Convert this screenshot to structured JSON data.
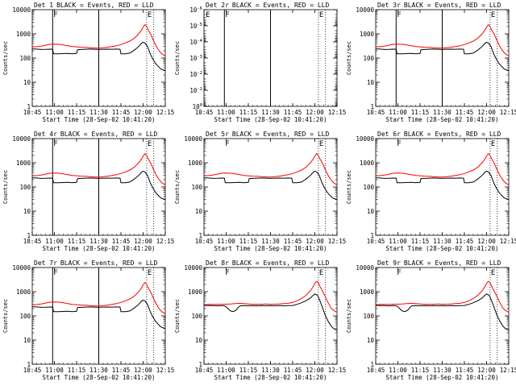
{
  "figure": {
    "xlabel": "Start Time (28-Sep-02 10:41:20)",
    "ylabel": "Counts/sec",
    "title_suffix": "BLACK = Events, RED = LLD"
  },
  "chart_data": [
    {
      "type": "line",
      "title": "Det 1",
      "title_suffix": "BLACK = Events, RED = LLD",
      "xlabel": "Start Time (28-Sep-02 10:41:20)",
      "ylabel": "Counts/sec",
      "yscale": "log",
      "ylim": [
        1,
        10000
      ],
      "xlim": [
        10.75,
        12.25
      ],
      "x_ticks": [
        10.75,
        11.0,
        11.25,
        11.5,
        11.75,
        12.0,
        12.25
      ],
      "x_tick_labels": [
        "10:45",
        "11:00",
        "11:15",
        "11:30",
        "11:45",
        "12:00",
        "12:15"
      ],
      "y_ticks": [
        1,
        10,
        100,
        1000,
        10000
      ],
      "y_tick_labels": [
        "1",
        "10",
        "100",
        "1000",
        "10000"
      ],
      "vlines_solid": [
        10.98,
        11.5
      ],
      "vlines_dotted": [
        12.04,
        12.12
      ],
      "markers": [
        {
          "x": 10.98,
          "label": "F"
        },
        {
          "x": 12.04,
          "label": "E"
        }
      ],
      "series": [
        {
          "name": "Events",
          "color": "#000000",
          "shape": "v1"
        },
        {
          "name": "LLD",
          "color": "#ff0000",
          "shape": "r1"
        }
      ]
    },
    {
      "type": "line",
      "title": "Det 2r",
      "title_suffix": "BLACK = Events, RED = LLD",
      "xlabel": "Start Time (28-Sep-02 10:41:20)",
      "ylabel": "Counts/sec",
      "yscale": "log",
      "ylim": [
        1,
        1e-06
      ],
      "xlim": [
        10.75,
        12.25
      ],
      "x_ticks": [
        10.75,
        11.0,
        11.25,
        11.5,
        11.75,
        12.0,
        12.25
      ],
      "x_tick_labels": [
        "10:45",
        "11:00",
        "11:15",
        "11:30",
        "11:45",
        "12:00",
        "12:15"
      ],
      "y_ticks": [
        1,
        0.1,
        0.01,
        0.001,
        0.0001,
        1e-05,
        1e-06
      ],
      "y_tick_labels": [
        "10^0",
        "10^-1",
        "10^-2",
        "10^-3",
        "10^-4",
        "10^-5",
        "10^-6"
      ],
      "vlines_solid": [
        10.98,
        11.5
      ],
      "vlines_dotted": [
        12.04,
        12.12
      ],
      "markers": [
        {
          "x": 10.76,
          "label": "E"
        },
        {
          "x": 10.98,
          "label": "F"
        },
        {
          "x": 12.04,
          "label": "E"
        }
      ],
      "series": []
    },
    {
      "type": "line",
      "title": "Det 3r",
      "title_suffix": "BLACK = Events, RED = LLD",
      "xlabel": "Start Time (28-Sep-02 10:41:20)",
      "ylabel": "Counts/sec",
      "yscale": "log",
      "ylim": [
        1,
        10000
      ],
      "xlim": [
        10.75,
        12.25
      ],
      "x_ticks": [
        10.75,
        11.0,
        11.25,
        11.5,
        11.75,
        12.0,
        12.25
      ],
      "x_tick_labels": [
        "10:45",
        "11:00",
        "11:15",
        "11:30",
        "11:45",
        "12:00",
        "12:15"
      ],
      "y_ticks": [
        1,
        10,
        100,
        1000,
        10000
      ],
      "y_tick_labels": [
        "1",
        "10",
        "100",
        "1000",
        "10000"
      ],
      "vlines_solid": [
        10.98,
        11.5
      ],
      "vlines_dotted": [
        12.04,
        12.12
      ],
      "markers": [
        {
          "x": 10.98,
          "label": "F"
        },
        {
          "x": 12.04,
          "label": "E"
        }
      ],
      "series": [
        {
          "name": "Events",
          "color": "#000000",
          "shape": "v1"
        },
        {
          "name": "LLD",
          "color": "#ff0000",
          "shape": "r1"
        }
      ]
    },
    {
      "type": "line",
      "title": "Det 4r",
      "title_suffix": "BLACK = Events, RED = LLD",
      "xlabel": "Start Time (28-Sep-02 10:41:20)",
      "ylabel": "Counts/sec",
      "yscale": "log",
      "ylim": [
        1,
        10000
      ],
      "xlim": [
        10.75,
        12.25
      ],
      "x_ticks": [
        10.75,
        11.0,
        11.25,
        11.5,
        11.75,
        12.0,
        12.25
      ],
      "x_tick_labels": [
        "10:45",
        "11:00",
        "11:15",
        "11:30",
        "11:45",
        "12:00",
        "12:15"
      ],
      "y_ticks": [
        1,
        10,
        100,
        1000,
        10000
      ],
      "y_tick_labels": [
        "1",
        "10",
        "100",
        "1000",
        "10000"
      ],
      "vlines_solid": [
        10.98,
        11.5
      ],
      "vlines_dotted": [
        12.04,
        12.12
      ],
      "markers": [
        {
          "x": 10.98,
          "label": "F"
        },
        {
          "x": 12.04,
          "label": "E"
        }
      ],
      "series": [
        {
          "name": "Events",
          "color": "#000000",
          "shape": "v1"
        },
        {
          "name": "LLD",
          "color": "#ff0000",
          "shape": "r1"
        }
      ]
    },
    {
      "type": "line",
      "title": "Det 5r",
      "title_suffix": "BLACK = Events, RED = LLD",
      "xlabel": "Start Time (28-Sep-02 10:41:20)",
      "ylabel": "Counts/sec",
      "yscale": "log",
      "ylim": [
        1,
        10000
      ],
      "xlim": [
        10.75,
        12.25
      ],
      "x_ticks": [
        10.75,
        11.0,
        11.25,
        11.5,
        11.75,
        12.0,
        12.25
      ],
      "x_tick_labels": [
        "10:45",
        "11:00",
        "11:15",
        "11:30",
        "11:45",
        "12:00",
        "12:15"
      ],
      "y_ticks": [
        1,
        10,
        100,
        1000,
        10000
      ],
      "y_tick_labels": [
        "1",
        "10",
        "100",
        "1000",
        "10000"
      ],
      "vlines_solid": [],
      "vlines_dotted": [
        12.04,
        12.12
      ],
      "markers": [
        {
          "x": 10.98,
          "label": "F"
        },
        {
          "x": 12.04,
          "label": "E"
        }
      ],
      "series": [
        {
          "name": "Events",
          "color": "#000000",
          "shape": "v1"
        },
        {
          "name": "LLD",
          "color": "#ff0000",
          "shape": "r1"
        }
      ]
    },
    {
      "type": "line",
      "title": "Det 6r",
      "title_suffix": "BLACK = Events, RED = LLD",
      "xlabel": "Start Time (28-Sep-02 10:41:20)",
      "ylabel": "Counts/sec",
      "yscale": "log",
      "ylim": [
        1,
        10000
      ],
      "xlim": [
        10.75,
        12.25
      ],
      "x_ticks": [
        10.75,
        11.0,
        11.25,
        11.5,
        11.75,
        12.0,
        12.25
      ],
      "x_tick_labels": [
        "10:45",
        "11:00",
        "11:15",
        "11:30",
        "11:45",
        "12:00",
        "12:15"
      ],
      "y_ticks": [
        1,
        10,
        100,
        1000,
        10000
      ],
      "y_tick_labels": [
        "1",
        "10",
        "100",
        "1000",
        "10000"
      ],
      "vlines_solid": [],
      "vlines_dotted": [
        12.04,
        12.12
      ],
      "markers": [
        {
          "x": 10.98,
          "label": "F"
        },
        {
          "x": 12.04,
          "label": "E"
        }
      ],
      "series": [
        {
          "name": "Events",
          "color": "#000000",
          "shape": "v1"
        },
        {
          "name": "LLD",
          "color": "#ff0000",
          "shape": "r1"
        }
      ]
    },
    {
      "type": "line",
      "title": "Det 7r",
      "title_suffix": "BLACK = Events, RED = LLD",
      "xlabel": "Start Time (28-Sep-02 10:41:20)",
      "ylabel": "Counts/sec",
      "yscale": "log",
      "ylim": [
        1,
        10000
      ],
      "xlim": [
        10.75,
        12.25
      ],
      "x_ticks": [
        10.75,
        11.0,
        11.25,
        11.5,
        11.75,
        12.0,
        12.25
      ],
      "x_tick_labels": [
        "10:45",
        "11:00",
        "11:15",
        "11:30",
        "11:45",
        "12:00",
        "12:15"
      ],
      "y_ticks": [
        1,
        10,
        100,
        1000,
        10000
      ],
      "y_tick_labels": [
        "1",
        "10",
        "100",
        "1000",
        "10000"
      ],
      "vlines_solid": [
        10.98,
        11.5
      ],
      "vlines_dotted": [
        12.04,
        12.12
      ],
      "markers": [
        {
          "x": 10.98,
          "label": "F"
        },
        {
          "x": 12.04,
          "label": "E"
        }
      ],
      "series": [
        {
          "name": "Events",
          "color": "#000000",
          "shape": "v1"
        },
        {
          "name": "LLD",
          "color": "#ff0000",
          "shape": "r1"
        }
      ]
    },
    {
      "type": "line",
      "title": "Det 8r",
      "title_suffix": "BLACK = Events, RED = LLD",
      "xlabel": "Start Time (28-Sep-02 10:41:20)",
      "ylabel": "Counts/sec",
      "yscale": "log",
      "ylim": [
        1,
        10000
      ],
      "xlim": [
        10.75,
        12.25
      ],
      "x_ticks": [
        10.75,
        11.0,
        11.25,
        11.5,
        11.75,
        12.0,
        12.25
      ],
      "x_tick_labels": [
        "10:45",
        "11:00",
        "11:15",
        "11:30",
        "11:45",
        "12:00",
        "12:15"
      ],
      "y_ticks": [
        1,
        10,
        100,
        1000,
        10000
      ],
      "y_tick_labels": [
        "1",
        "10",
        "100",
        "1000",
        "10000"
      ],
      "vlines_solid": [],
      "vlines_dotted": [
        12.04,
        12.12
      ],
      "markers": [
        {
          "x": 10.98,
          "label": "F"
        },
        {
          "x": 12.04,
          "label": "E"
        }
      ],
      "series": [
        {
          "name": "Events",
          "color": "#000000",
          "shape": "v2"
        },
        {
          "name": "LLD",
          "color": "#ff0000",
          "shape": "r2"
        }
      ]
    },
    {
      "type": "line",
      "title": "Det 9r",
      "title_suffix": "BLACK = Events, RED = LLD",
      "xlabel": "Start Time (28-Sep-02 10:41:20)",
      "ylabel": "Counts/sec",
      "yscale": "log",
      "ylim": [
        1,
        10000
      ],
      "xlim": [
        10.75,
        12.25
      ],
      "x_ticks": [
        10.75,
        11.0,
        11.25,
        11.5,
        11.75,
        12.0,
        12.25
      ],
      "x_tick_labels": [
        "10:45",
        "11:00",
        "11:15",
        "11:30",
        "11:45",
        "12:00",
        "12:15"
      ],
      "y_ticks": [
        1,
        10,
        100,
        1000,
        10000
      ],
      "y_tick_labels": [
        "1",
        "10",
        "100",
        "1000",
        "10000"
      ],
      "vlines_solid": [],
      "vlines_dotted": [
        12.04,
        12.12
      ],
      "markers": [
        {
          "x": 10.98,
          "label": "F"
        },
        {
          "x": 12.04,
          "label": "E"
        }
      ],
      "series": [
        {
          "name": "Events",
          "color": "#000000",
          "shape": "v2"
        },
        {
          "name": "LLD",
          "color": "#ff0000",
          "shape": "r2"
        }
      ]
    }
  ]
}
